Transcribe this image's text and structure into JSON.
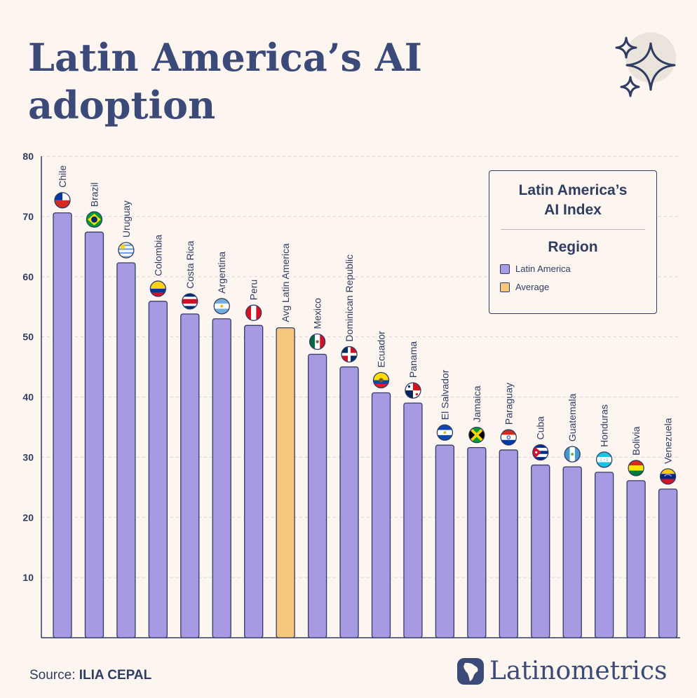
{
  "title": "Latin America’s AI adoption",
  "legend": {
    "title_line1": "Latin America’s",
    "title_line2": "AI Index",
    "subtitle": "Region",
    "items": [
      {
        "label": "Latin America",
        "color": "#a899e3"
      },
      {
        "label": "Average",
        "color": "#f4c77c"
      }
    ]
  },
  "source": {
    "prefix": "Source: ",
    "name": "ILIA CEPAL"
  },
  "brand": {
    "name": "Latinometrics",
    "icon": "latam-map-logo-icon"
  },
  "colors": {
    "latam": "#a899e3",
    "average": "#f4c77c",
    "outline": "#2f3d63",
    "grid": "#d9d2cf"
  },
  "chart_data": {
    "type": "bar",
    "categories": [
      "Chile",
      "Brazil",
      "Uruguay",
      "Colombia",
      "Costa Rica",
      "Argentina",
      "Peru",
      "Avg Latin America",
      "Mexico",
      "Dominican Republic",
      "Ecuador",
      "Panama",
      "El Salvador",
      "Jamaica",
      "Paraguay",
      "Cuba",
      "Guatemala",
      "Honduras",
      "Bolivia",
      "Venezuela"
    ],
    "values": [
      70.6,
      67.4,
      62.3,
      55.9,
      53.8,
      53.0,
      51.9,
      51.5,
      47.1,
      45.0,
      40.7,
      39.0,
      32.0,
      31.6,
      31.2,
      28.7,
      28.4,
      27.5,
      26.1,
      24.7
    ],
    "groups": [
      "Latin America",
      "Latin America",
      "Latin America",
      "Latin America",
      "Latin America",
      "Latin America",
      "Latin America",
      "Average",
      "Latin America",
      "Latin America",
      "Latin America",
      "Latin America",
      "Latin America",
      "Latin America",
      "Latin America",
      "Latin America",
      "Latin America",
      "Latin America",
      "Latin America",
      "Latin America"
    ],
    "flags": [
      "chile-flag-icon",
      "brazil-flag-icon",
      "uruguay-flag-icon",
      "colombia-flag-icon",
      "costa-rica-flag-icon",
      "argentina-flag-icon",
      "peru-flag-icon",
      "",
      "mexico-flag-icon",
      "dominican-republic-flag-icon",
      "ecuador-flag-icon",
      "panama-flag-icon",
      "el-salvador-flag-icon",
      "jamaica-flag-icon",
      "paraguay-flag-icon",
      "cuba-flag-icon",
      "guatemala-flag-icon",
      "honduras-flag-icon",
      "bolivia-flag-icon",
      "venezuela-flag-icon"
    ],
    "yticks": [
      "10",
      "20",
      "30",
      "40",
      "50",
      "60",
      "70",
      "80"
    ],
    "ylim": [
      0,
      80
    ],
    "grid": true,
    "legend_position": "top-right",
    "title": "Latin America’s AI adoption",
    "xlabel": "",
    "ylabel": ""
  }
}
